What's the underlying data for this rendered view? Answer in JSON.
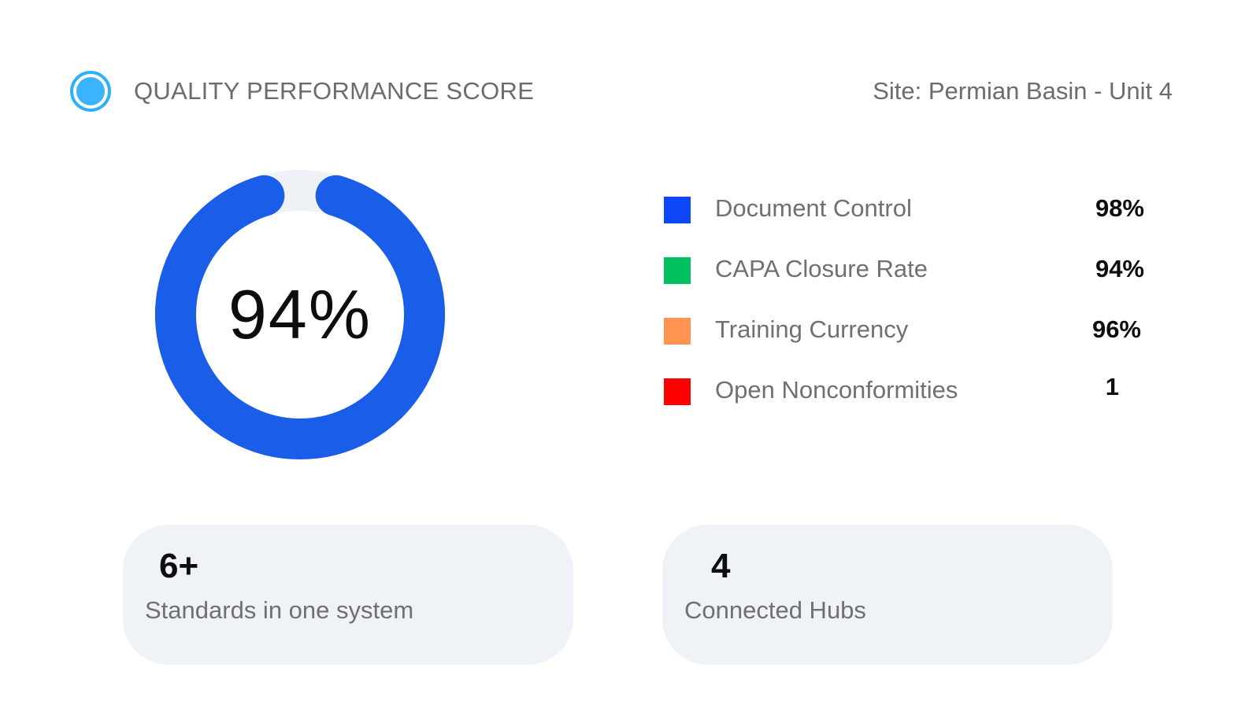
{
  "header": {
    "title": "QUALITY PERFORMANCE SCORE",
    "site": "Site: Permian Basin - Unit 4",
    "status_icon": "status-dot-icon",
    "status_color": "#3ab4ff"
  },
  "score": {
    "value_label": "94%",
    "fraction": 0.94,
    "ring_color": "#1a5de8",
    "track_color": "#eef2f7"
  },
  "metrics": [
    {
      "label": "Document Control",
      "value": "98%",
      "color": "#0d47f7"
    },
    {
      "label": "CAPA Closure Rate",
      "value": "94%",
      "color": "#00c060"
    },
    {
      "label": "Training Currency",
      "value": "96%",
      "color": "#ff9452"
    },
    {
      "label": "Open Nonconformities",
      "value": "1",
      "color": "#ff0000"
    }
  ],
  "stats": [
    {
      "number": "6+",
      "caption": "Standards in one system"
    },
    {
      "number": "4",
      "caption": "Connected Hubs"
    }
  ]
}
